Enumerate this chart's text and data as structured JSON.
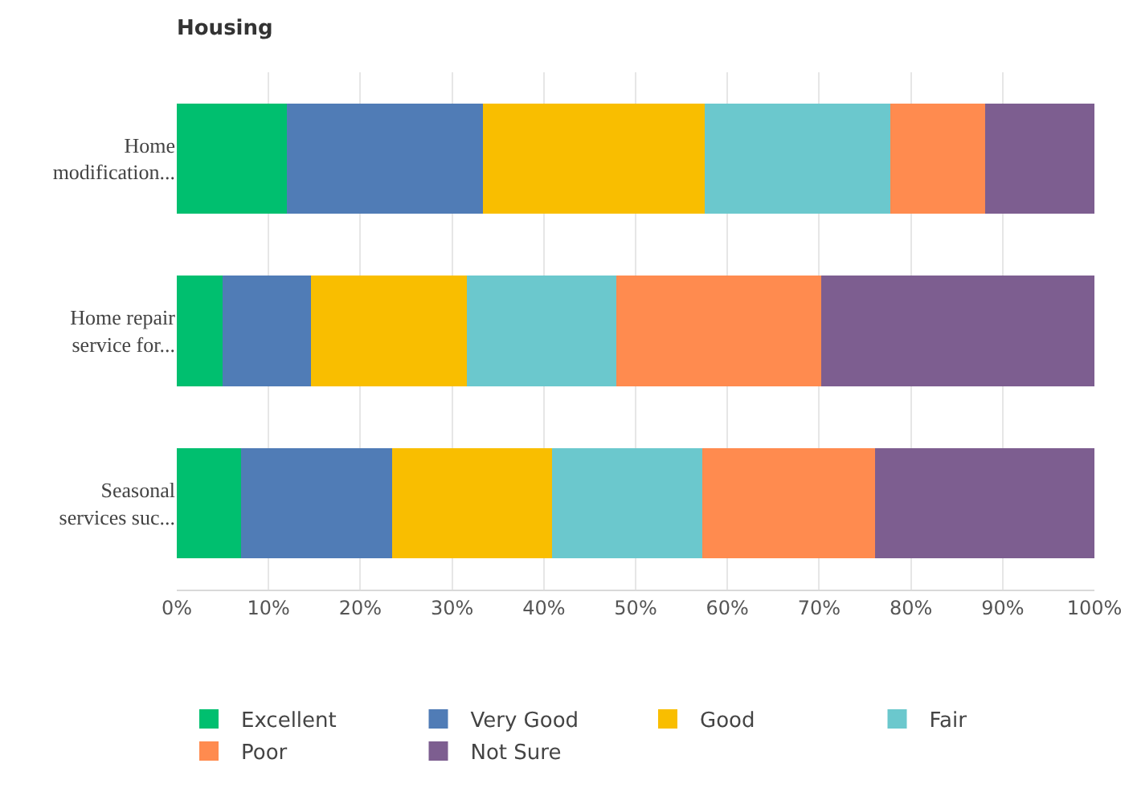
{
  "chart_data": {
    "type": "bar",
    "title": "Housing",
    "orientation": "horizontal",
    "stacked": true,
    "categories": [
      "Home modification...",
      "Home repair service for...",
      "Seasonal services suc..."
    ],
    "series": [
      {
        "name": "Excellent",
        "color": "#00bf6f",
        "values": [
          12,
          5,
          7
        ]
      },
      {
        "name": "Very Good",
        "color": "#507cb6",
        "values": [
          21.4,
          9.6,
          16.5
        ]
      },
      {
        "name": "Good",
        "color": "#f9be00",
        "values": [
          24.1,
          17,
          17.4
        ]
      },
      {
        "name": "Fair",
        "color": "#6bc8cd",
        "values": [
          20.3,
          16.3,
          16.4
        ]
      },
      {
        "name": "Poor",
        "color": "#ff8b4f",
        "values": [
          10.3,
          22.3,
          18.8
        ]
      },
      {
        "name": "Not Sure",
        "color": "#7d5e90",
        "values": [
          11.9,
          29.8,
          23.9
        ]
      }
    ],
    "xlim": [
      0,
      100
    ],
    "xticks": [
      {
        "value": 0,
        "label": "0%"
      },
      {
        "value": 10,
        "label": "10%"
      },
      {
        "value": 20,
        "label": "20%"
      },
      {
        "value": 30,
        "label": "30%"
      },
      {
        "value": 40,
        "label": "40%"
      },
      {
        "value": 50,
        "label": "50%"
      },
      {
        "value": 60,
        "label": "60%"
      },
      {
        "value": 70,
        "label": "70%"
      },
      {
        "value": 80,
        "label": "80%"
      },
      {
        "value": 90,
        "label": "90%"
      },
      {
        "value": 100,
        "label": "100%"
      }
    ],
    "grid": "x",
    "legend": "bottom"
  }
}
